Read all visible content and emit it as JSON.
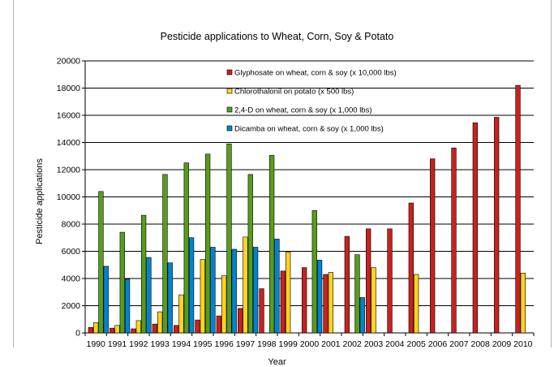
{
  "chart_data": {
    "type": "bar",
    "title": "Pesticide applications to Wheat, Corn, Soy & Potato",
    "xlabel": "Year",
    "ylabel": "Pesticide applications",
    "ylim": [
      0,
      20000
    ],
    "yticks": [
      0,
      2000,
      4000,
      6000,
      8000,
      10000,
      12000,
      14000,
      16000,
      18000,
      20000
    ],
    "grid": true,
    "legend_position": "top-right, inside plot",
    "categories": [
      "1990",
      "1991",
      "1992",
      "1993",
      "1994",
      "1995",
      "1996",
      "1997",
      "1998",
      "1999",
      "2000",
      "2001",
      "2002",
      "2003",
      "2004",
      "2005",
      "2006",
      "2007",
      "2008",
      "2009",
      "2010"
    ],
    "series": [
      {
        "name": "Glyphosate on wheat, corn & soy (x 10,000 lbs)",
        "color": "#c9211e",
        "values": [
          400,
          350,
          300,
          650,
          550,
          950,
          1250,
          1800,
          3250,
          4550,
          4800,
          4300,
          7100,
          7650,
          7650,
          9550,
          12800,
          13600,
          15450,
          15850,
          18200
        ]
      },
      {
        "name": "Chlorothalonil on potato (x 500 lbs)",
        "color": "#ffd320",
        "values": [
          750,
          550,
          900,
          1550,
          2800,
          5400,
          4200,
          7050,
          null,
          5950,
          null,
          4450,
          null,
          4800,
          null,
          4300,
          null,
          null,
          null,
          null,
          4400
        ]
      },
      {
        "name": "2,4-D on wheat, corn & soy (x 1,000 lbs)",
        "color": "#579d1c",
        "values": [
          10400,
          7400,
          8650,
          11650,
          12500,
          13150,
          13900,
          11650,
          13050,
          null,
          9000,
          null,
          5750,
          null,
          null,
          null,
          null,
          null,
          null,
          null,
          null
        ]
      },
      {
        "name": "Dicamba on wheat, corn & soy (x 1,000 lbs)",
        "color": "#0084d1",
        "values": [
          4900,
          3950,
          5550,
          5150,
          7000,
          6300,
          6150,
          6300,
          6900,
          null,
          5350,
          null,
          2600,
          null,
          null,
          null,
          null,
          null,
          null,
          null,
          null
        ]
      }
    ]
  }
}
